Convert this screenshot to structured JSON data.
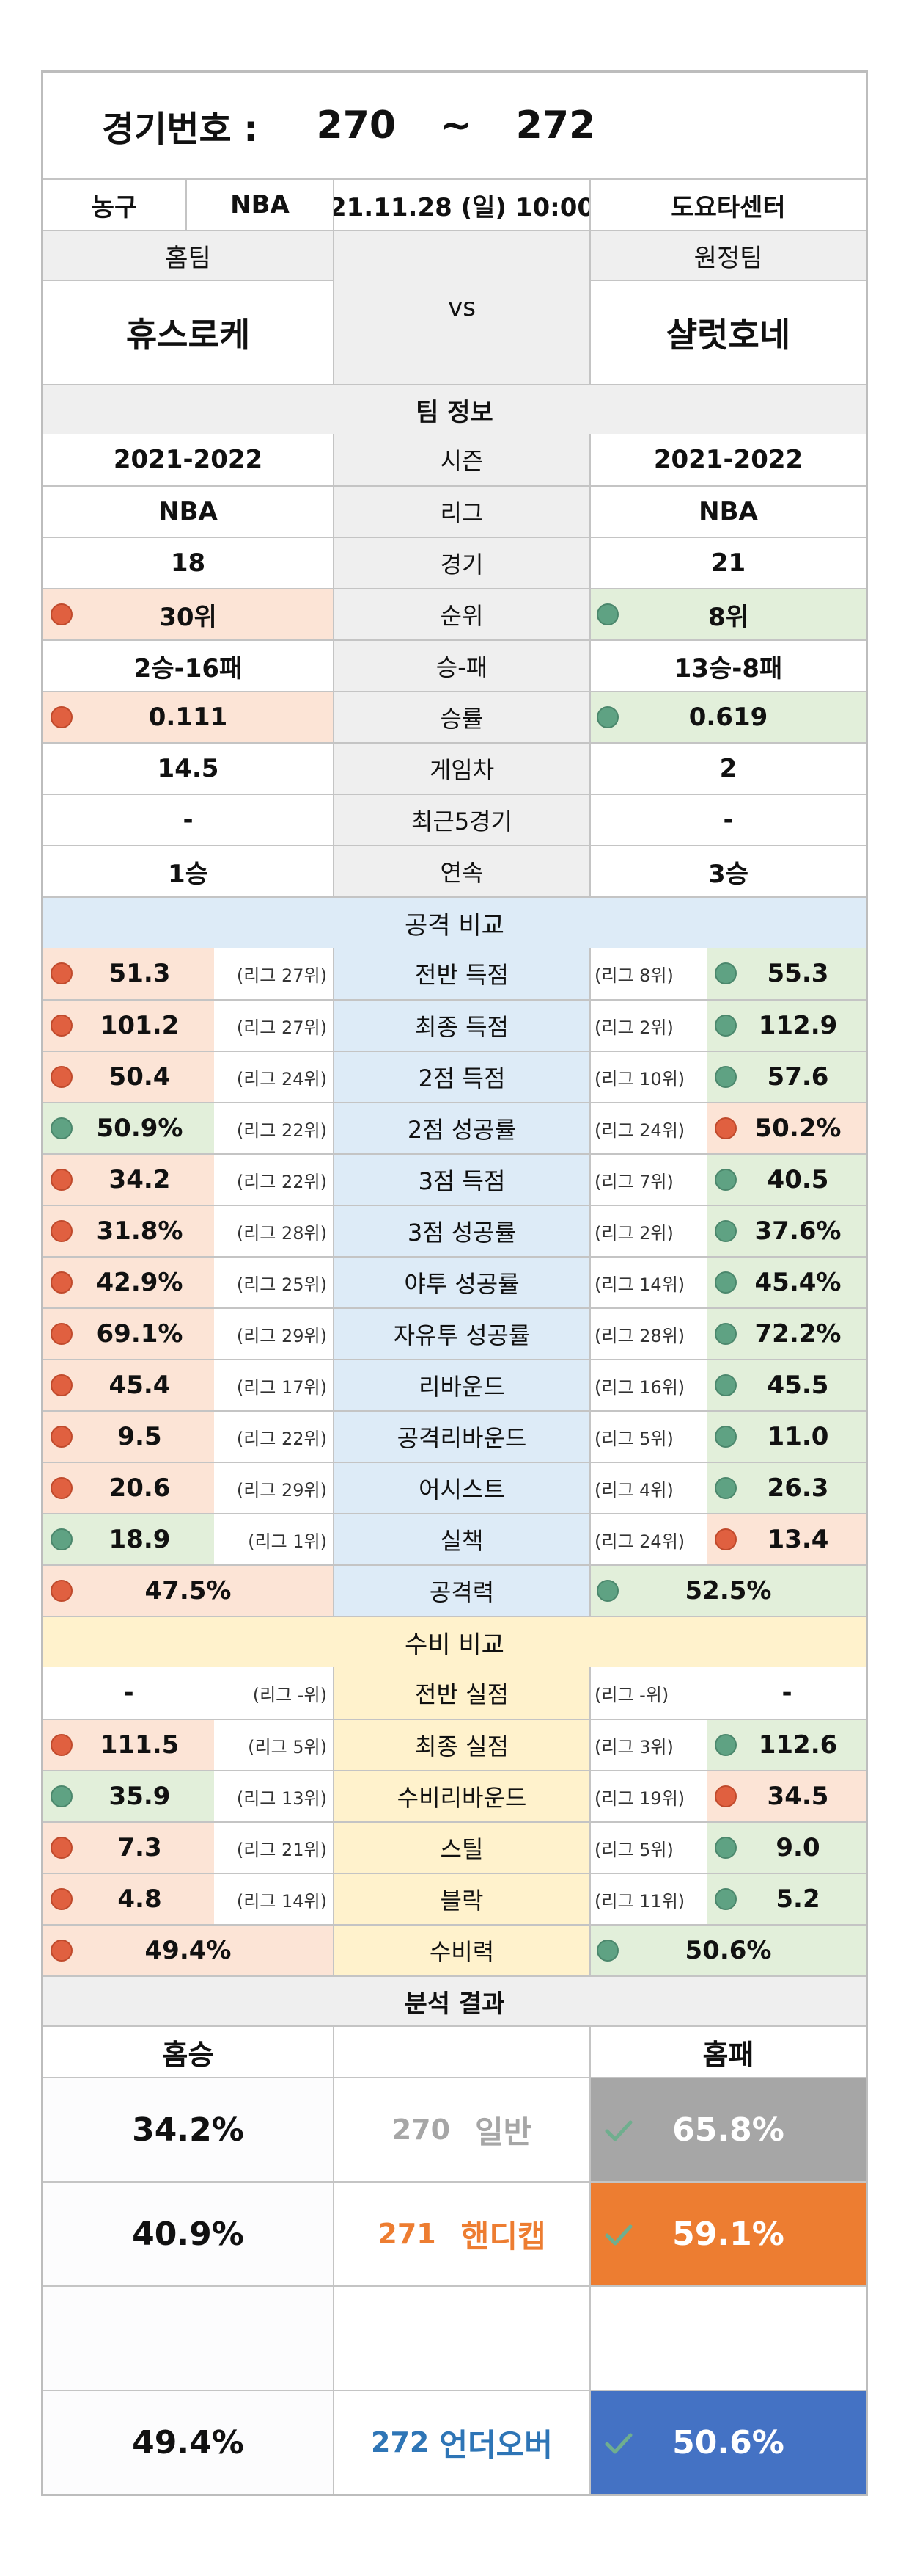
{
  "header": {
    "label": "경기번호 :",
    "start": "270",
    "tilde": "~",
    "end": "272",
    "sport": "농구",
    "league": "NBA",
    "datetime": "21.11.28 (일) 10:00",
    "venue": "도요타센터"
  },
  "teams": {
    "home_label": "홈팀",
    "away_label": "원정팀",
    "vs": "vs",
    "home_name": "휴스로케",
    "away_name": "샬럿호네"
  },
  "team_info": {
    "title": "팀 정보",
    "rows": [
      {
        "label": "시즌",
        "home": "2021-2022",
        "away": "2021-2022"
      },
      {
        "label": "리그",
        "home": "NBA",
        "away": "NBA"
      },
      {
        "label": "경기",
        "home": "18",
        "away": "21"
      },
      {
        "label": "순위",
        "home": "30위",
        "away": "8위"
      },
      {
        "label": "승-패",
        "home": "2승-16패",
        "away": "13승-8패"
      },
      {
        "label": "승률",
        "home": "0.111",
        "away": "0.619"
      },
      {
        "label": "게임차",
        "home": "14.5",
        "away": "2"
      },
      {
        "label": "최근5경기",
        "home": "-",
        "away": "-"
      },
      {
        "label": "연속",
        "home": "1승",
        "away": "3승"
      }
    ]
  },
  "attack": {
    "title": "공격 비교",
    "rows": [
      {
        "label": "전반 득점",
        "home": "51.3",
        "home_rank": "(리그 27위)",
        "away_rank": "(리그 8위)",
        "away": "55.3"
      },
      {
        "label": "최종 득점",
        "home": "101.2",
        "home_rank": "(리그 27위)",
        "away_rank": "(리그 2위)",
        "away": "112.9"
      },
      {
        "label": "2점 득점",
        "home": "50.4",
        "home_rank": "(리그 24위)",
        "away_rank": "(리그 10위)",
        "away": "57.6"
      },
      {
        "label": "2점 성공률",
        "home": "50.9%",
        "home_rank": "(리그 22위)",
        "away_rank": "(리그 24위)",
        "away": "50.2%"
      },
      {
        "label": "3점 득점",
        "home": "34.2",
        "home_rank": "(리그 22위)",
        "away_rank": "(리그 7위)",
        "away": "40.5"
      },
      {
        "label": "3점 성공률",
        "home": "31.8%",
        "home_rank": "(리그 28위)",
        "away_rank": "(리그 2위)",
        "away": "37.6%"
      },
      {
        "label": "야투 성공률",
        "home": "42.9%",
        "home_rank": "(리그 25위)",
        "away_rank": "(리그 14위)",
        "away": "45.4%"
      },
      {
        "label": "자유투 성공률",
        "home": "69.1%",
        "home_rank": "(리그 29위)",
        "away_rank": "(리그 28위)",
        "away": "72.2%"
      },
      {
        "label": "리바운드",
        "home": "45.4",
        "home_rank": "(리그 17위)",
        "away_rank": "(리그 16위)",
        "away": "45.5"
      },
      {
        "label": "공격리바운드",
        "home": "9.5",
        "home_rank": "(리그 22위)",
        "away_rank": "(리그 5위)",
        "away": "11.0"
      },
      {
        "label": "어시스트",
        "home": "20.6",
        "home_rank": "(리그 29위)",
        "away_rank": "(리그 4위)",
        "away": "26.3"
      },
      {
        "label": "실책",
        "home": "18.9",
        "home_rank": "(리그 1위)",
        "away_rank": "(리그 24위)",
        "away": "13.4"
      }
    ],
    "power_label": "공격력",
    "power_home": "47.5%",
    "power_away": "52.5%"
  },
  "defense": {
    "title": "수비 비교",
    "rows": [
      {
        "label": "전반 실점",
        "home": "-",
        "home_rank": "(리그 -위)",
        "away_rank": "(리그 -위)",
        "away": "-"
      },
      {
        "label": "최종 실점",
        "home": "111.5",
        "home_rank": "(리그 5위)",
        "away_rank": "(리그 3위)",
        "away": "112.6"
      },
      {
        "label": "수비리바운드",
        "home": "35.9",
        "home_rank": "(리그 13위)",
        "away_rank": "(리그 19위)",
        "away": "34.5"
      },
      {
        "label": "스틸",
        "home": "7.3",
        "home_rank": "(리그 21위)",
        "away_rank": "(리그 5위)",
        "away": "9.0"
      },
      {
        "label": "블락",
        "home": "4.8",
        "home_rank": "(리그 14위)",
        "away_rank": "(리그 11위)",
        "away": "5.2"
      }
    ],
    "power_label": "수비력",
    "power_home": "49.4%",
    "power_away": "50.6%"
  },
  "analysis": {
    "title": "분석 결과",
    "col_home": "홈승",
    "col_away": "홈패",
    "rows": [
      {
        "home": "34.2%",
        "num": "270",
        "name": "일반",
        "away": "65.8%"
      },
      {
        "home": "40.9%",
        "num": "271",
        "name": "핸디캡",
        "away": "59.1%"
      },
      {
        "home": "49.4%",
        "num": "272",
        "name": "언더오버",
        "away": "50.6%"
      }
    ]
  },
  "colors": {
    "header_gray": "#efefef",
    "attack_blue": "#ddebf7",
    "defense_yellow": "#fff2cc",
    "lose_red": "#fce4d6",
    "win_green": "#e2efda",
    "dot_red": "#e06040",
    "dot_green": "#5fa283",
    "result_gray": "#a6a6a6",
    "result_orange": "#ed7d31",
    "result_blue": "#4472c4"
  }
}
